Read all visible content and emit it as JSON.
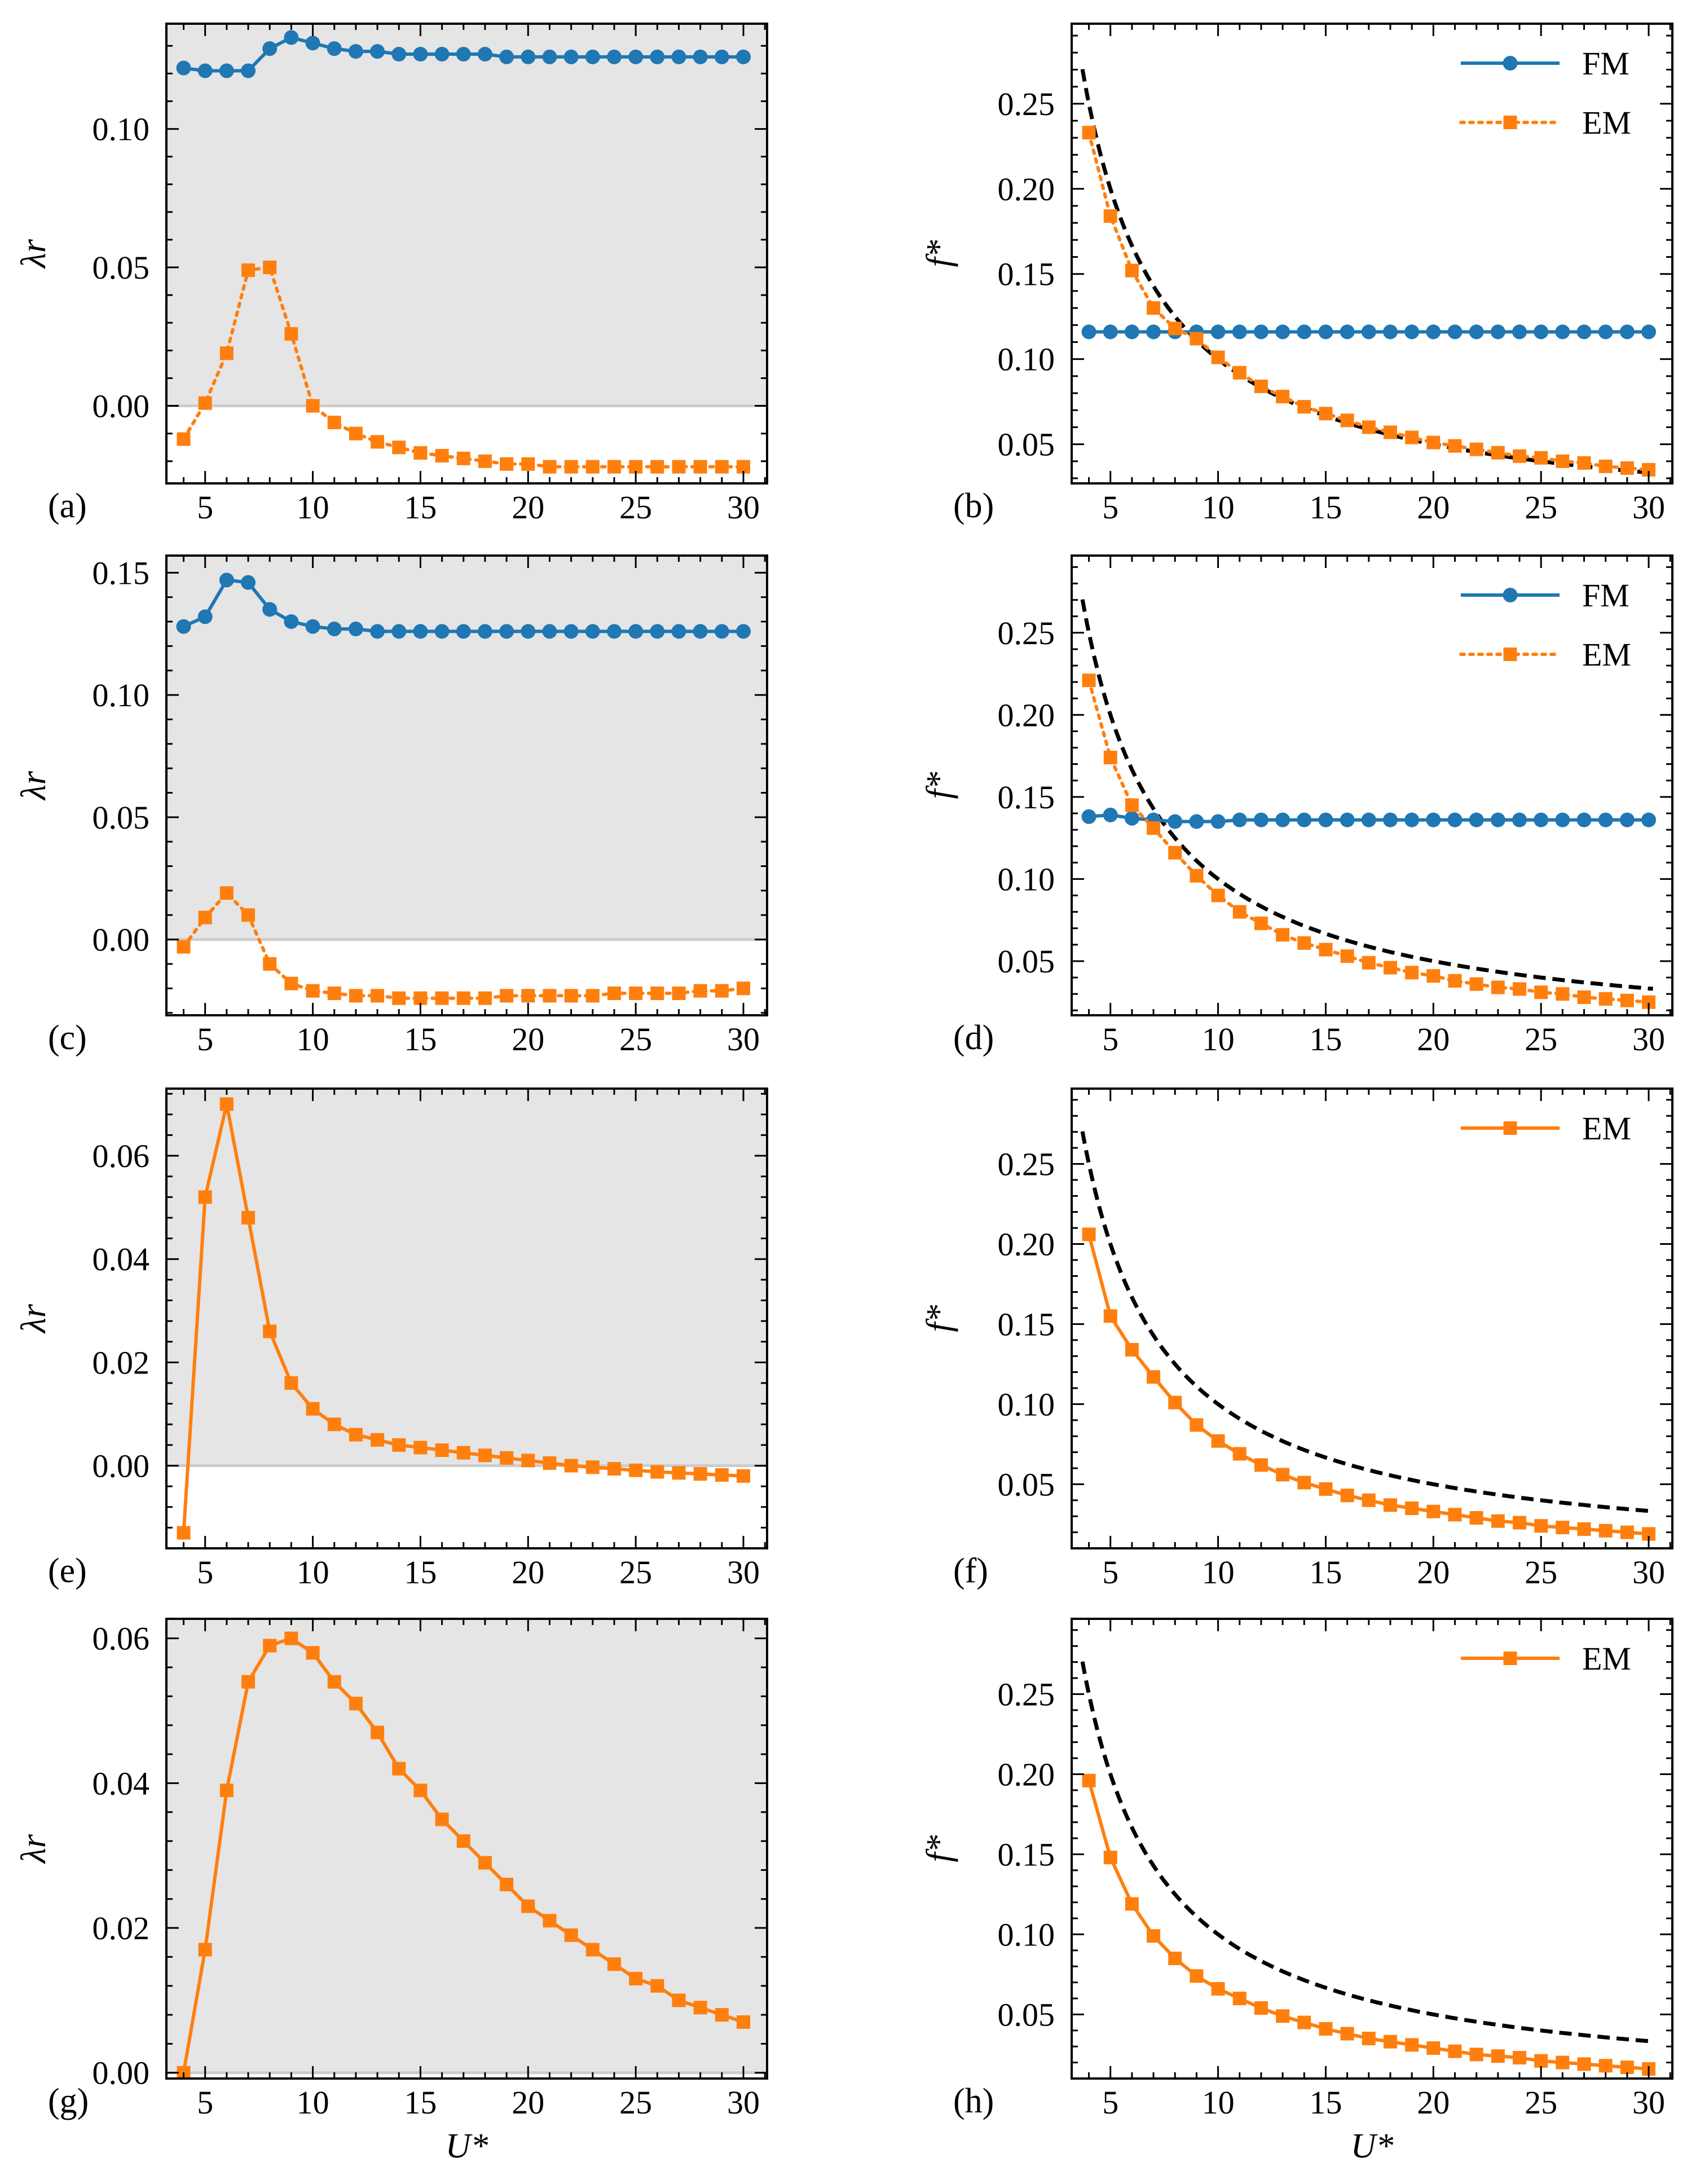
{
  "figure": {
    "shared_xlabel": "U*",
    "colors": {
      "FM": "#1f77b4",
      "EM": "#ff7f0e",
      "shade": "#e5e5e5",
      "dashed": "#000000",
      "zero_line": "#cccccc"
    }
  },
  "chart_data": [
    {
      "panel": "(a)",
      "type": "line",
      "ylabel": "λr",
      "xlabel": "",
      "xlim": [
        3.2,
        31.1
      ],
      "ylim": [
        -0.028,
        0.138
      ],
      "xticks": [
        5,
        10,
        15,
        20,
        25,
        30
      ],
      "yticks": [
        0.0,
        0.05,
        0.1
      ],
      "ytick_labels": [
        "0.00",
        "0.05",
        "0.10"
      ],
      "xtick_labels": [
        "5",
        "10",
        "15",
        "20",
        "25",
        "30"
      ],
      "shade_above_zero": true,
      "zero_line": true,
      "legend": false,
      "dashed_reference": false,
      "series": [
        {
          "name": "FM",
          "style": "solid",
          "marker": "circle",
          "color": "#1f77b4",
          "x": [
            4,
            5,
            6,
            7,
            8,
            9,
            10,
            11,
            12,
            13,
            14,
            15,
            16,
            17,
            18,
            19,
            20,
            21,
            22,
            23,
            24,
            25,
            26,
            27,
            28,
            29,
            30
          ],
          "values": [
            0.122,
            0.121,
            0.121,
            0.121,
            0.129,
            0.133,
            0.131,
            0.129,
            0.128,
            0.128,
            0.127,
            0.127,
            0.127,
            0.127,
            0.127,
            0.126,
            0.126,
            0.126,
            0.126,
            0.126,
            0.126,
            0.126,
            0.126,
            0.126,
            0.126,
            0.126,
            0.126
          ]
        },
        {
          "name": "EM",
          "style": "dotted",
          "marker": "square",
          "color": "#ff7f0e",
          "x": [
            4,
            5,
            6,
            7,
            8,
            9,
            10,
            11,
            12,
            13,
            14,
            15,
            16,
            17,
            18,
            19,
            20,
            21,
            22,
            23,
            24,
            25,
            26,
            27,
            28,
            29,
            30
          ],
          "values": [
            -0.012,
            0.001,
            0.019,
            0.049,
            0.05,
            0.026,
            0.0,
            -0.006,
            -0.01,
            -0.013,
            -0.015,
            -0.017,
            -0.018,
            -0.019,
            -0.02,
            -0.021,
            -0.021,
            -0.022,
            -0.022,
            -0.022,
            -0.022,
            -0.022,
            -0.022,
            -0.022,
            -0.022,
            -0.022,
            -0.022
          ]
        }
      ]
    },
    {
      "panel": "(b)",
      "type": "line",
      "ylabel": "f*",
      "xlabel": "",
      "xlim": [
        3.2,
        31.1
      ],
      "ylim": [
        0.027,
        0.297
      ],
      "xticks": [
        5,
        10,
        15,
        20,
        25,
        30
      ],
      "yticks": [
        0.05,
        0.1,
        0.15,
        0.2,
        0.25
      ],
      "ytick_labels": [
        "0.05",
        "0.10",
        "0.15",
        "0.20",
        "0.25"
      ],
      "xtick_labels": [
        "5",
        "10",
        "15",
        "20",
        "25",
        "30"
      ],
      "shade_above_zero": false,
      "zero_line": false,
      "legend": true,
      "dashed_reference": true,
      "dashed_reference_function": "1/U*",
      "series": [
        {
          "name": "FM",
          "style": "solid",
          "marker": "circle",
          "color": "#1f77b4",
          "x": [
            4,
            5,
            6,
            7,
            8,
            9,
            10,
            11,
            12,
            13,
            14,
            15,
            16,
            17,
            18,
            19,
            20,
            21,
            22,
            23,
            24,
            25,
            26,
            27,
            28,
            29,
            30
          ],
          "values": [
            0.116,
            0.116,
            0.116,
            0.116,
            0.116,
            0.116,
            0.116,
            0.116,
            0.116,
            0.116,
            0.116,
            0.116,
            0.116,
            0.116,
            0.116,
            0.116,
            0.116,
            0.116,
            0.116,
            0.116,
            0.116,
            0.116,
            0.116,
            0.116,
            0.116,
            0.116,
            0.116
          ]
        },
        {
          "name": "EM",
          "style": "dotted",
          "marker": "square",
          "color": "#ff7f0e",
          "x": [
            4,
            5,
            6,
            7,
            8,
            9,
            10,
            11,
            12,
            13,
            14,
            15,
            16,
            17,
            18,
            19,
            20,
            21,
            22,
            23,
            24,
            25,
            26,
            27,
            28,
            29,
            30
          ],
          "values": [
            0.233,
            0.184,
            0.152,
            0.13,
            0.118,
            0.112,
            0.101,
            0.092,
            0.084,
            0.078,
            0.072,
            0.068,
            0.064,
            0.06,
            0.057,
            0.054,
            0.051,
            0.049,
            0.047,
            0.045,
            0.043,
            0.042,
            0.04,
            0.039,
            0.037,
            0.036,
            0.035
          ]
        }
      ]
    },
    {
      "panel": "(c)",
      "type": "line",
      "ylabel": "λr",
      "xlabel": "",
      "xlim": [
        3.2,
        31.1
      ],
      "ylim": [
        -0.031,
        0.157
      ],
      "xticks": [
        5,
        10,
        15,
        20,
        25,
        30
      ],
      "yticks": [
        0.0,
        0.05,
        0.1,
        0.15
      ],
      "ytick_labels": [
        "0.00",
        "0.05",
        "0.10",
        "0.15"
      ],
      "xtick_labels": [
        "5",
        "10",
        "15",
        "20",
        "25",
        "30"
      ],
      "shade_above_zero": true,
      "zero_line": true,
      "legend": false,
      "dashed_reference": false,
      "series": [
        {
          "name": "FM",
          "style": "solid",
          "marker": "circle",
          "color": "#1f77b4",
          "x": [
            4,
            5,
            6,
            7,
            8,
            9,
            10,
            11,
            12,
            13,
            14,
            15,
            16,
            17,
            18,
            19,
            20,
            21,
            22,
            23,
            24,
            25,
            26,
            27,
            28,
            29,
            30
          ],
          "values": [
            0.128,
            0.132,
            0.147,
            0.146,
            0.135,
            0.13,
            0.128,
            0.127,
            0.127,
            0.126,
            0.126,
            0.126,
            0.126,
            0.126,
            0.126,
            0.126,
            0.126,
            0.126,
            0.126,
            0.126,
            0.126,
            0.126,
            0.126,
            0.126,
            0.126,
            0.126,
            0.126
          ]
        },
        {
          "name": "EM",
          "style": "dotted",
          "marker": "square",
          "color": "#ff7f0e",
          "x": [
            4,
            5,
            6,
            7,
            8,
            9,
            10,
            11,
            12,
            13,
            14,
            15,
            16,
            17,
            18,
            19,
            20,
            21,
            22,
            23,
            24,
            25,
            26,
            27,
            28,
            29,
            30
          ],
          "values": [
            -0.003,
            0.009,
            0.019,
            0.01,
            -0.01,
            -0.018,
            -0.021,
            -0.022,
            -0.023,
            -0.023,
            -0.024,
            -0.024,
            -0.024,
            -0.024,
            -0.024,
            -0.023,
            -0.023,
            -0.023,
            -0.023,
            -0.023,
            -0.022,
            -0.022,
            -0.022,
            -0.022,
            -0.021,
            -0.021,
            -0.02
          ]
        }
      ]
    },
    {
      "panel": "(d)",
      "type": "line",
      "ylabel": "f*",
      "xlabel": "",
      "xlim": [
        3.2,
        31.1
      ],
      "ylim": [
        0.017,
        0.297
      ],
      "xticks": [
        5,
        10,
        15,
        20,
        25,
        30
      ],
      "yticks": [
        0.05,
        0.1,
        0.15,
        0.2,
        0.25
      ],
      "ytick_labels": [
        "0.05",
        "0.10",
        "0.15",
        "0.20",
        "0.25"
      ],
      "xtick_labels": [
        "5",
        "10",
        "15",
        "20",
        "25",
        "30"
      ],
      "shade_above_zero": false,
      "zero_line": false,
      "legend": true,
      "dashed_reference": true,
      "dashed_reference_function": "1/U*",
      "series": [
        {
          "name": "FM",
          "style": "solid",
          "marker": "circle",
          "color": "#1f77b4",
          "x": [
            4,
            5,
            6,
            7,
            8,
            9,
            10,
            11,
            12,
            13,
            14,
            15,
            16,
            17,
            18,
            19,
            20,
            21,
            22,
            23,
            24,
            25,
            26,
            27,
            28,
            29,
            30
          ],
          "values": [
            0.138,
            0.139,
            0.137,
            0.136,
            0.135,
            0.135,
            0.135,
            0.136,
            0.136,
            0.136,
            0.136,
            0.136,
            0.136,
            0.136,
            0.136,
            0.136,
            0.136,
            0.136,
            0.136,
            0.136,
            0.136,
            0.136,
            0.136,
            0.136,
            0.136,
            0.136,
            0.136
          ]
        },
        {
          "name": "EM",
          "style": "dotted",
          "marker": "square",
          "color": "#ff7f0e",
          "x": [
            4,
            5,
            6,
            7,
            8,
            9,
            10,
            11,
            12,
            13,
            14,
            15,
            16,
            17,
            18,
            19,
            20,
            21,
            22,
            23,
            24,
            25,
            26,
            27,
            28,
            29,
            30
          ],
          "values": [
            0.221,
            0.174,
            0.145,
            0.131,
            0.116,
            0.102,
            0.09,
            0.08,
            0.073,
            0.066,
            0.061,
            0.057,
            0.053,
            0.049,
            0.046,
            0.043,
            0.041,
            0.038,
            0.036,
            0.034,
            0.033,
            0.031,
            0.03,
            0.028,
            0.027,
            0.026,
            0.025
          ]
        }
      ]
    },
    {
      "panel": "(e)",
      "type": "line",
      "ylabel": "λr",
      "xlabel": "",
      "xlim": [
        3.2,
        31.1
      ],
      "ylim": [
        -0.016,
        0.073
      ],
      "xticks": [
        5,
        10,
        15,
        20,
        25,
        30
      ],
      "yticks": [
        0.0,
        0.02,
        0.04,
        0.06
      ],
      "ytick_labels": [
        "0.00",
        "0.02",
        "0.04",
        "0.06"
      ],
      "xtick_labels": [
        "5",
        "10",
        "15",
        "20",
        "25",
        "30"
      ],
      "shade_above_zero": true,
      "zero_line": true,
      "legend": false,
      "dashed_reference": false,
      "series": [
        {
          "name": "EM",
          "style": "solid",
          "marker": "square",
          "color": "#ff7f0e",
          "x": [
            4,
            5,
            6,
            7,
            8,
            9,
            10,
            11,
            12,
            13,
            14,
            15,
            16,
            17,
            18,
            19,
            20,
            21,
            22,
            23,
            24,
            25,
            26,
            27,
            28,
            29,
            30
          ],
          "values": [
            -0.013,
            0.052,
            0.07,
            0.048,
            0.026,
            0.016,
            0.011,
            0.008,
            0.006,
            0.005,
            0.004,
            0.0035,
            0.003,
            0.0025,
            0.002,
            0.0015,
            0.001,
            0.0005,
            0.0,
            -0.0003,
            -0.0006,
            -0.0009,
            -0.0012,
            -0.0014,
            -0.0016,
            -0.0018,
            -0.002
          ]
        }
      ]
    },
    {
      "panel": "(f)",
      "type": "line",
      "ylabel": "f*",
      "xlabel": "",
      "xlim": [
        3.2,
        31.1
      ],
      "ylim": [
        0.01,
        0.297
      ],
      "xticks": [
        5,
        10,
        15,
        20,
        25,
        30
      ],
      "yticks": [
        0.05,
        0.1,
        0.15,
        0.2,
        0.25
      ],
      "ytick_labels": [
        "0.05",
        "0.10",
        "0.15",
        "0.20",
        "0.25"
      ],
      "xtick_labels": [
        "5",
        "10",
        "15",
        "20",
        "25",
        "30"
      ],
      "shade_above_zero": false,
      "zero_line": false,
      "legend": true,
      "dashed_reference": true,
      "dashed_reference_function": "1/U*",
      "series": [
        {
          "name": "EM",
          "style": "solid",
          "marker": "square",
          "color": "#ff7f0e",
          "x": [
            4,
            5,
            6,
            7,
            8,
            9,
            10,
            11,
            12,
            13,
            14,
            15,
            16,
            17,
            18,
            19,
            20,
            21,
            22,
            23,
            24,
            25,
            26,
            27,
            28,
            29,
            30
          ],
          "values": [
            0.206,
            0.155,
            0.134,
            0.117,
            0.101,
            0.087,
            0.077,
            0.069,
            0.062,
            0.056,
            0.051,
            0.047,
            0.043,
            0.04,
            0.037,
            0.035,
            0.033,
            0.031,
            0.029,
            0.027,
            0.026,
            0.024,
            0.023,
            0.022,
            0.021,
            0.02,
            0.019
          ]
        }
      ]
    },
    {
      "panel": "(g)",
      "type": "line",
      "ylabel": "λr",
      "xlabel": "U*",
      "xlim": [
        3.2,
        31.1
      ],
      "ylim": [
        -0.0008,
        0.0627
      ],
      "xticks": [
        5,
        10,
        15,
        20,
        25,
        30
      ],
      "yticks": [
        0.0,
        0.02,
        0.04,
        0.06
      ],
      "ytick_labels": [
        "0.00",
        "0.02",
        "0.04",
        "0.06"
      ],
      "xtick_labels": [
        "5",
        "10",
        "15",
        "20",
        "25",
        "30"
      ],
      "shade_above_zero": true,
      "zero_line": true,
      "legend": false,
      "dashed_reference": false,
      "series": [
        {
          "name": "EM",
          "style": "solid",
          "marker": "square",
          "color": "#ff7f0e",
          "x": [
            4,
            5,
            6,
            7,
            8,
            9,
            10,
            11,
            12,
            13,
            14,
            15,
            16,
            17,
            18,
            19,
            20,
            21,
            22,
            23,
            24,
            25,
            26,
            27,
            28,
            29,
            30
          ],
          "values": [
            0.0,
            0.017,
            0.039,
            0.054,
            0.059,
            0.06,
            0.058,
            0.054,
            0.051,
            0.047,
            0.042,
            0.039,
            0.035,
            0.032,
            0.029,
            0.026,
            0.023,
            0.021,
            0.019,
            0.017,
            0.015,
            0.013,
            0.012,
            0.01,
            0.009,
            0.008,
            0.007
          ]
        }
      ]
    },
    {
      "panel": "(h)",
      "type": "line",
      "ylabel": "f*",
      "xlabel": "U*",
      "xlim": [
        3.2,
        31.1
      ],
      "ylim": [
        0.01,
        0.297
      ],
      "xticks": [
        5,
        10,
        15,
        20,
        25,
        30
      ],
      "yticks": [
        0.05,
        0.1,
        0.15,
        0.2,
        0.25
      ],
      "ytick_labels": [
        "0.05",
        "0.10",
        "0.15",
        "0.20",
        "0.25"
      ],
      "xtick_labels": [
        "5",
        "10",
        "15",
        "20",
        "25",
        "30"
      ],
      "shade_above_zero": false,
      "zero_line": false,
      "legend": true,
      "dashed_reference": true,
      "dashed_reference_function": "1/U*",
      "series": [
        {
          "name": "EM",
          "style": "solid",
          "marker": "square",
          "color": "#ff7f0e",
          "x": [
            4,
            5,
            6,
            7,
            8,
            9,
            10,
            11,
            12,
            13,
            14,
            15,
            16,
            17,
            18,
            19,
            20,
            21,
            22,
            23,
            24,
            25,
            26,
            27,
            28,
            29,
            30
          ],
          "values": [
            0.196,
            0.148,
            0.119,
            0.099,
            0.085,
            0.074,
            0.066,
            0.06,
            0.054,
            0.049,
            0.045,
            0.041,
            0.038,
            0.035,
            0.033,
            0.031,
            0.029,
            0.027,
            0.025,
            0.024,
            0.023,
            0.021,
            0.02,
            0.019,
            0.018,
            0.017,
            0.016
          ]
        }
      ]
    }
  ]
}
